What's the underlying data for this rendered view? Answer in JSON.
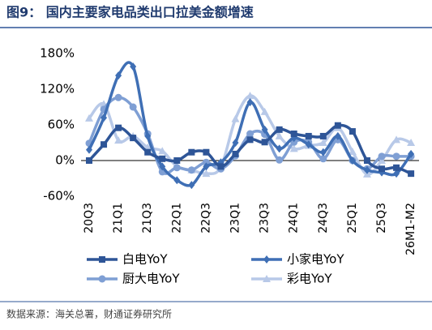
{
  "title": "图9： 国内主要家电品类出口拉美金额增速",
  "source": "数据来源：海关总署，财通证券研究所",
  "chart_data": {
    "type": "line",
    "categories": [
      "20Q3",
      null,
      "21Q1",
      null,
      "21Q3",
      null,
      "22Q1",
      null,
      "22Q3",
      null,
      "23Q1",
      null,
      "23Q3",
      null,
      "24Q1",
      null,
      "24Q3",
      null,
      "25Q1",
      null,
      "25Q3",
      null,
      "26M1-M2"
    ],
    "ylim": [
      -60,
      180
    ],
    "yticks": [
      {
        "value": -60,
        "label": "-60%"
      },
      {
        "value": 0,
        "label": "0%"
      },
      {
        "value": 60,
        "label": "60%"
      },
      {
        "value": 120,
        "label": "120%"
      },
      {
        "value": 180,
        "label": "180%"
      }
    ],
    "series": [
      {
        "name": "白电YoY",
        "color": "#2e5597",
        "marker": "square",
        "values": [
          0,
          27,
          55,
          38,
          14,
          3,
          0,
          14,
          14,
          -10,
          11,
          35,
          31,
          52,
          45,
          41,
          41,
          59,
          49,
          0,
          -14,
          -12,
          -22
        ]
      },
      {
        "name": "小家电YoY",
        "color": "#3f6fb5",
        "marker": "diamond",
        "values": [
          18,
          72,
          143,
          158,
          41,
          -10,
          -33,
          -41,
          -10,
          -3,
          30,
          98,
          52,
          20,
          38,
          27,
          14,
          41,
          0,
          -16,
          -20,
          -22,
          11
        ]
      },
      {
        "name": "厨大电YoY",
        "color": "#7f9fd4",
        "marker": "circle",
        "values": [
          29,
          86,
          106,
          90,
          45,
          -19,
          -12,
          -16,
          -3,
          -14,
          8,
          45,
          44,
          1,
          31,
          31,
          3,
          35,
          0,
          -14,
          7,
          7,
          7
        ]
      },
      {
        "name": "彩电YoY",
        "color": "#b8c9e8",
        "marker": "triangle",
        "values": [
          71,
          95,
          34,
          41,
          22,
          16,
          -10,
          -16,
          -22,
          -11,
          70,
          109,
          82,
          41,
          20,
          25,
          30,
          55,
          15,
          -23,
          0,
          35,
          30
        ]
      }
    ]
  }
}
